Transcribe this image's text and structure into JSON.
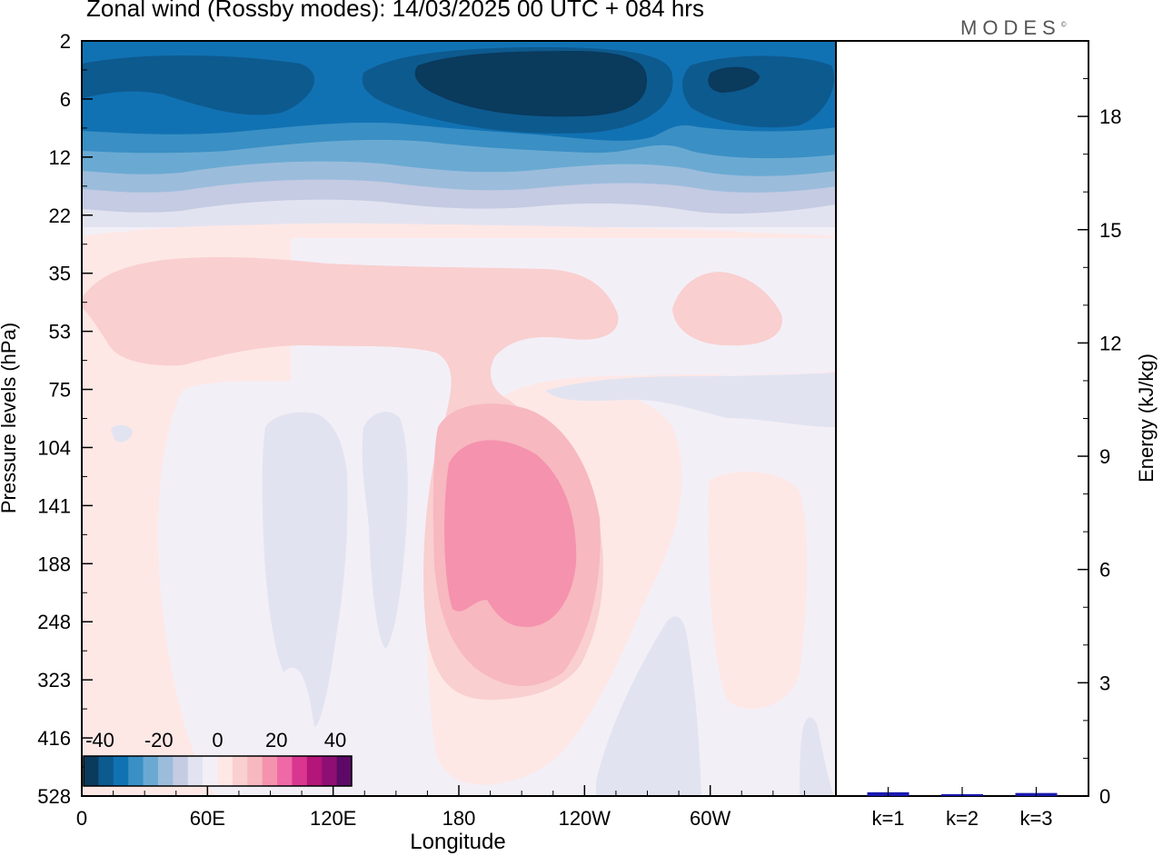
{
  "title": "Zonal wind (Rossby modes):  14/03/2025  00 UTC  + 084 hrs",
  "brand": "MODES",
  "brand_mark": "©",
  "chart_data": [
    {
      "type": "heatmap",
      "xlabel": "Longitude",
      "ylabel": "Pressure levels (hPa)",
      "x_ticks": [
        "0",
        "60E",
        "120E",
        "180",
        "120W",
        "60W"
      ],
      "y_ticks": [
        "2",
        "6",
        "12",
        "22",
        "35",
        "53",
        "75",
        "104",
        "141",
        "188",
        "248",
        "323",
        "416",
        "528"
      ],
      "colorbar": {
        "labels": [
          "-40",
          "-20",
          "0",
          "20",
          "40"
        ],
        "colors": [
          "#0a3a5c",
          "#0d5a8f",
          "#1172b3",
          "#3a8fc4",
          "#6aaad2",
          "#9cbcdc",
          "#c4cbe2",
          "#e2e3f0",
          "#f3eff7",
          "#fde8e6",
          "#f9cfcf",
          "#f7b8c0",
          "#f592ad",
          "#ee69a6",
          "#d9368f",
          "#b31579",
          "#8e0f74",
          "#5c0a66"
        ]
      },
      "features": [
        {
          "name": "easterly jet (upper stratosphere)",
          "value_range": [
            -40,
            -10
          ],
          "levels_hPa": [
            2,
            22
          ]
        },
        {
          "name": "westerly maximum near dateline",
          "value_range": [
            10,
            25
          ],
          "levels_hPa": [
            104,
            248
          ]
        }
      ]
    },
    {
      "type": "bar",
      "ylabel": "Energy (kJ/kg)",
      "categories": [
        "k=1",
        "k=2",
        "k=3"
      ],
      "values": [
        0.1,
        0.05,
        0.08
      ],
      "ylim": [
        0,
        20
      ],
      "y_ticks": [
        "0",
        "3",
        "6",
        "9",
        "12",
        "15",
        "18"
      ],
      "bar_color": "#1a1ab0"
    }
  ]
}
